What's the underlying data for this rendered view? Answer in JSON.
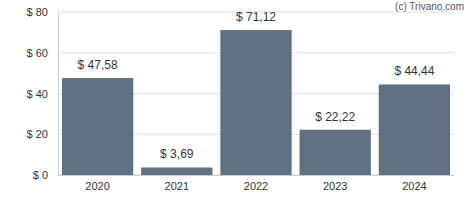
{
  "chart_data": {
    "type": "bar",
    "annotations": [
      "(c) Trivano.com"
    ],
    "categories": [
      "2020",
      "2021",
      "2022",
      "2023",
      "2024"
    ],
    "values": [
      47.58,
      3.69,
      71.12,
      22.22,
      44.44
    ],
    "value_labels": [
      "$ 47,58",
      "$ 3,69",
      "$ 71,12",
      "$ 22,22",
      "$ 44,44"
    ],
    "data_labels": true,
    "color": "#5f7180",
    "ylim": [
      0,
      80
    ],
    "yticks": [
      {
        "value": 0,
        "label": "$ 0"
      },
      {
        "value": 20,
        "label": "$ 20"
      },
      {
        "value": 40,
        "label": "$ 40"
      },
      {
        "value": 60,
        "label": "$ 60"
      },
      {
        "value": 80,
        "label": "$ 80"
      }
    ],
    "grid": true
  }
}
